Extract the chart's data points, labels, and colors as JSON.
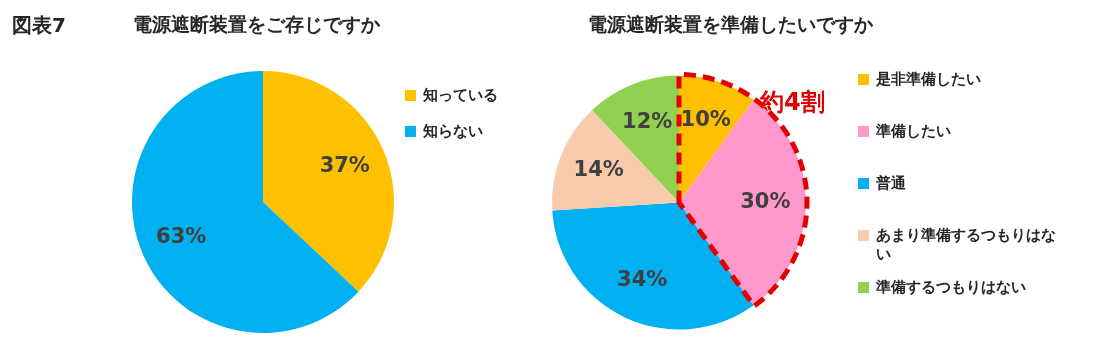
{
  "chart_data": [
    {
      "type": "pie",
      "title": "電源遮断装置をご存じですか",
      "categories": [
        "知っている",
        "知らない"
      ],
      "values": [
        37,
        63
      ],
      "colors": [
        "#ffc000",
        "#00b0f0"
      ],
      "value_labels": [
        "37%",
        "63%"
      ],
      "legend": "right",
      "annotations": [
        "図表7"
      ]
    },
    {
      "type": "pie",
      "title": "電源遮断装置を準備したいですか",
      "categories": [
        "是非準備したい",
        "準備したい",
        "普通",
        "あまり準備するつもりはない",
        "準備するつもりはない"
      ],
      "values": [
        10,
        30,
        34,
        14,
        12
      ],
      "colors": [
        "#ffc000",
        "#ff99cc",
        "#00b0f0",
        "#f8cbad",
        "#92d050"
      ],
      "value_labels": [
        "10%",
        "30%",
        "34%",
        "14%",
        "12%"
      ],
      "legend": "right",
      "annotations": [
        "約4割"
      ]
    }
  ]
}
